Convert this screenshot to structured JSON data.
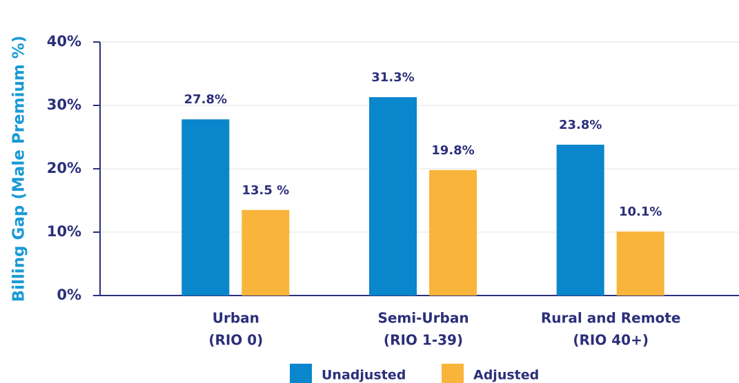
{
  "chart_data": {
    "type": "bar",
    "y_label": "Billing Gap (Male Premium %)",
    "categories": [
      [
        "Urban",
        "(RIO 0)"
      ],
      [
        "Semi-Urban",
        "(RIO 1-39)"
      ],
      [
        "Rural and Remote",
        "(RIO 40+)"
      ]
    ],
    "series": [
      {
        "name": "Unadjusted",
        "color": "#0a86cc",
        "values": [
          27.8,
          31.3,
          23.8
        ],
        "value_labels": [
          "27.8%",
          "31.3%",
          "23.8%"
        ]
      },
      {
        "name": "Adjusted",
        "color": "#f9b43b",
        "values": [
          13.5,
          19.8,
          10.1
        ],
        "value_labels": [
          "13.5 %",
          "19.8%",
          "10.1%"
        ]
      }
    ],
    "ylim": [
      0,
      40
    ],
    "yticks": [
      {
        "value": 0,
        "label": "0%"
      },
      {
        "value": 10,
        "label": "10%"
      },
      {
        "value": 20,
        "label": "20%"
      },
      {
        "value": 30,
        "label": "30%"
      },
      {
        "value": 40,
        "label": "40%"
      }
    ],
    "grid": true,
    "legend": "bottom"
  }
}
